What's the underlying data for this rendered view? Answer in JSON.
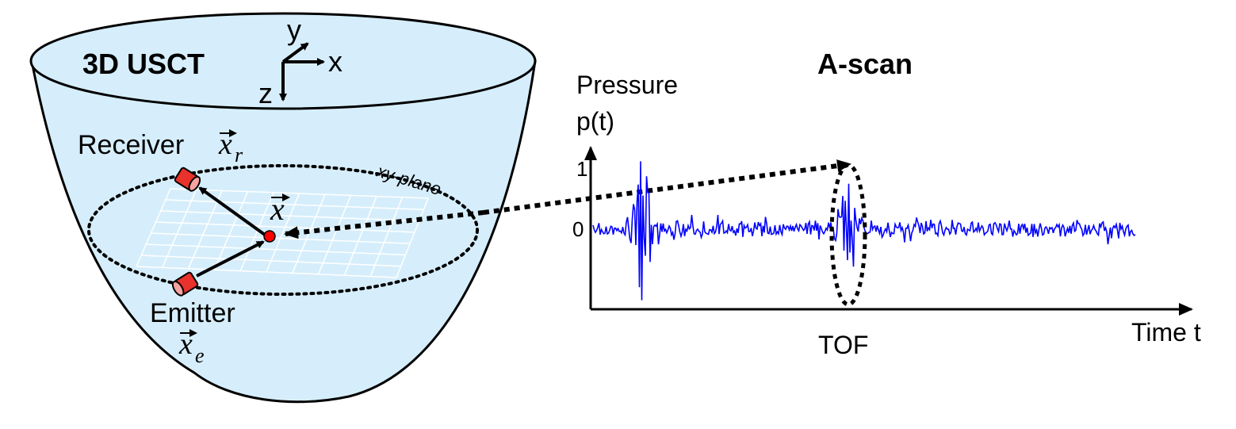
{
  "left_panel": {
    "title": "3D USCT",
    "axes": {
      "x": "x",
      "y": "y",
      "z": "z"
    },
    "receiver_label": "Receiver",
    "receiver_var": "x",
    "receiver_sub": "r",
    "emitter_label": "Emitter",
    "emitter_var": "x",
    "emitter_sub": "e",
    "point_var": "x",
    "plane_label": "xy-plane"
  },
  "right_panel": {
    "title": "A-scan",
    "ylabel_line1": "Pressure",
    "ylabel_line2": "p(t)",
    "xlabel": "Time t",
    "y_tick_top": "1",
    "y_tick_zero": "0",
    "tof_label": "TOF"
  },
  "colors": {
    "water": "#d6eefb",
    "signal": "#0000ff",
    "transducer": "#e8322b",
    "outline": "#000000"
  }
}
